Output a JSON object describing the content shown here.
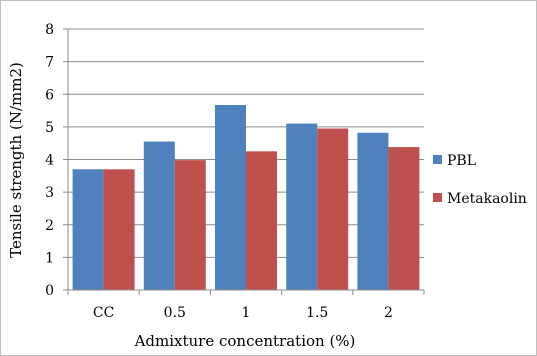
{
  "chart_data": {
    "type": "bar",
    "title": "",
    "xlabel": "Admixture concentration (%)",
    "ylabel": "Tensile strength (N/mm2)",
    "categories": [
      "CC",
      "0.5",
      "1",
      "1.5",
      "2"
    ],
    "series": [
      {
        "name": "PBL",
        "color": "#4f81bd",
        "values": [
          3.7,
          4.55,
          5.67,
          5.1,
          4.82
        ]
      },
      {
        "name": "Metakaolin",
        "color": "#c0504d",
        "values": [
          3.7,
          3.98,
          4.25,
          4.95,
          4.38
        ]
      }
    ],
    "ylim": [
      0,
      8
    ],
    "yticks": [
      0,
      1,
      2,
      3,
      4,
      5,
      6,
      7,
      8
    ],
    "grid": true,
    "legend_position": "right"
  }
}
